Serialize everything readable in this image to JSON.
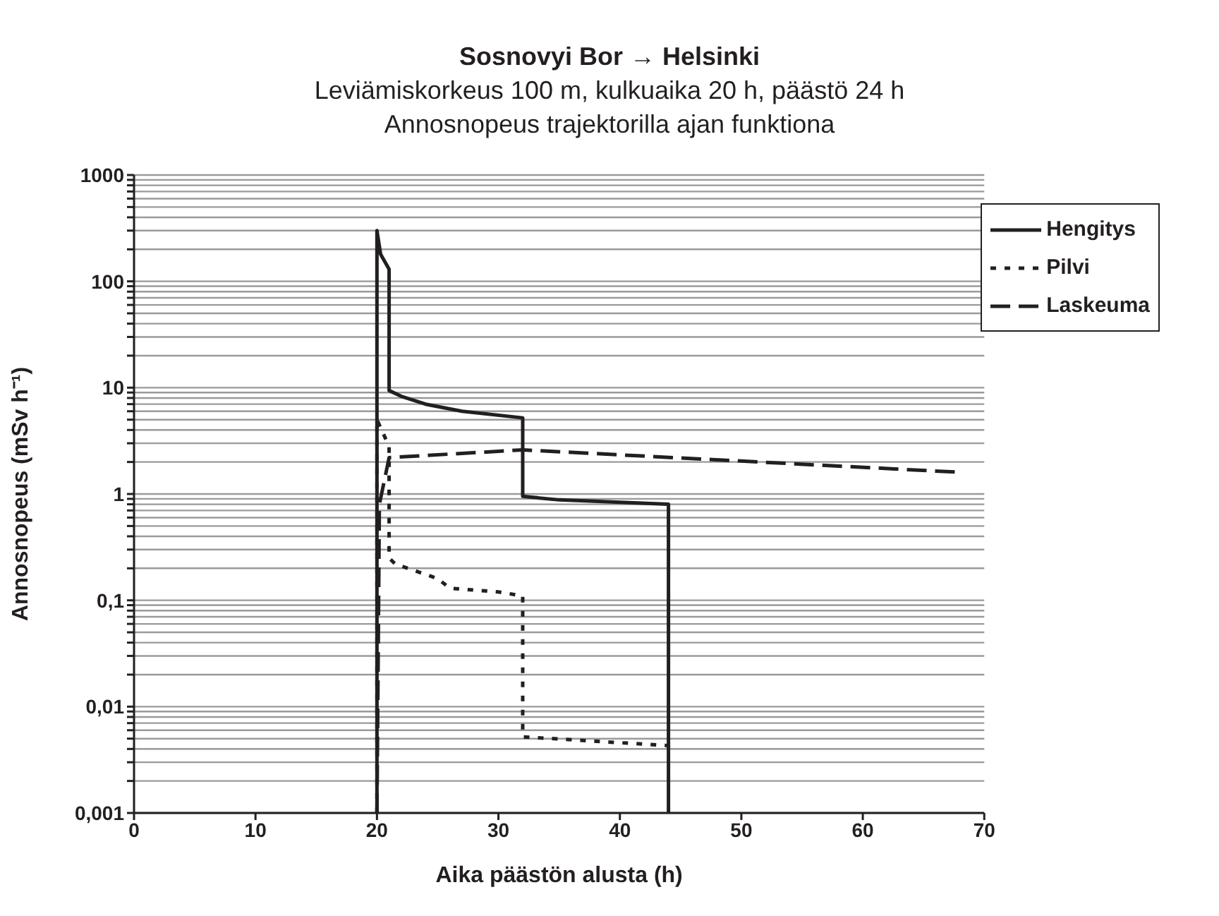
{
  "chart_data": {
    "type": "line",
    "title": "Sosnovyi Bor → Helsinki",
    "subtitle": "Leviämiskorkeus 100 m, kulkuaika 20 h, päästö 24 h\nAnnosnopeus trajektorilla ajan funktiona",
    "xlabel": "Aika päästön alusta (h)",
    "ylabel": "Annosnopeus (mSv h⁻¹)",
    "log": "y",
    "grid": "y",
    "legend": "top right",
    "marker": "none",
    "xlim": [
      0,
      70
    ],
    "xticks": [
      0,
      10,
      20,
      30,
      40,
      50,
      60,
      70
    ],
    "ylim": [
      0.001,
      1000
    ],
    "yticks": [
      {
        "value": 0.001,
        "label": "0,001"
      },
      {
        "value": 0.002,
        "label": null
      },
      {
        "value": 0.003,
        "label": null
      },
      {
        "value": 0.004,
        "label": null
      },
      {
        "value": 0.005,
        "label": null
      },
      {
        "value": 0.006,
        "label": null
      },
      {
        "value": 0.007,
        "label": null
      },
      {
        "value": 0.008,
        "label": null
      },
      {
        "value": 0.009,
        "label": null
      },
      {
        "value": 0.01,
        "label": "0,01"
      },
      {
        "value": 0.02,
        "label": null
      },
      {
        "value": 0.03,
        "label": null
      },
      {
        "value": 0.04,
        "label": null
      },
      {
        "value": 0.05,
        "label": null
      },
      {
        "value": 0.06,
        "label": null
      },
      {
        "value": 0.07,
        "label": null
      },
      {
        "value": 0.08,
        "label": null
      },
      {
        "value": 0.09,
        "label": null
      },
      {
        "value": 0.1,
        "label": "0,1"
      },
      {
        "value": 0.2,
        "label": null
      },
      {
        "value": 0.3,
        "label": null
      },
      {
        "value": 0.4,
        "label": null
      },
      {
        "value": 0.5,
        "label": null
      },
      {
        "value": 0.6,
        "label": null
      },
      {
        "value": 0.7,
        "label": null
      },
      {
        "value": 0.8,
        "label": null
      },
      {
        "value": 0.9,
        "label": null
      },
      1,
      {
        "value": 2,
        "label": null
      },
      {
        "value": 3,
        "label": null
      },
      {
        "value": 4,
        "label": null
      },
      {
        "value": 5,
        "label": null
      },
      {
        "value": 6,
        "label": null
      },
      {
        "value": 7,
        "label": null
      },
      {
        "value": 8,
        "label": null
      },
      {
        "value": 9,
        "label": null
      },
      10,
      {
        "value": 20,
        "label": null
      },
      {
        "value": 30,
        "label": null
      },
      {
        "value": 40,
        "label": null
      },
      {
        "value": 50,
        "label": null
      },
      {
        "value": 60,
        "label": null
      },
      {
        "value": 70,
        "label": null
      },
      {
        "value": 80,
        "label": null
      },
      {
        "value": 90,
        "label": null
      },
      100,
      {
        "value": 200,
        "label": null
      },
      {
        "value": 300,
        "label": null
      },
      {
        "value": 400,
        "label": null
      },
      {
        "value": 500,
        "label": null
      },
      {
        "value": 600,
        "label": null
      },
      {
        "value": 700,
        "label": null
      },
      {
        "value": 800,
        "label": null
      },
      {
        "value": 900,
        "label": null
      },
      1000
    ],
    "series": [
      {
        "name": "Hengitys",
        "color": "#231f20",
        "line_style": "solid",
        "x": [
          20,
          20,
          20.3,
          21,
          21,
          22,
          24,
          27,
          32,
          32,
          35,
          44,
          44
        ],
        "values": [
          0.001,
          300,
          180,
          130,
          9.4,
          8.3,
          7,
          6,
          5.2,
          0.95,
          0.88,
          0.8,
          0.001
        ]
      },
      {
        "name": "Pilvi",
        "color": "#231f20",
        "line_style": "dotted",
        "x": [
          20,
          20,
          21,
          21,
          21.5,
          25,
          26,
          30,
          32,
          32,
          44
        ],
        "values": [
          0.001,
          5,
          2.8,
          0.25,
          0.22,
          0.16,
          0.13,
          0.12,
          0.11,
          0.0052,
          0.0043
        ]
      },
      {
        "name": "Laskeuma",
        "color": "#231f20",
        "line_style": "dashed",
        "x": [
          20,
          20.2,
          21,
          32,
          68
        ],
        "values": [
          0.001,
          0.8,
          2.2,
          2.6,
          1.6
        ]
      }
    ]
  }
}
